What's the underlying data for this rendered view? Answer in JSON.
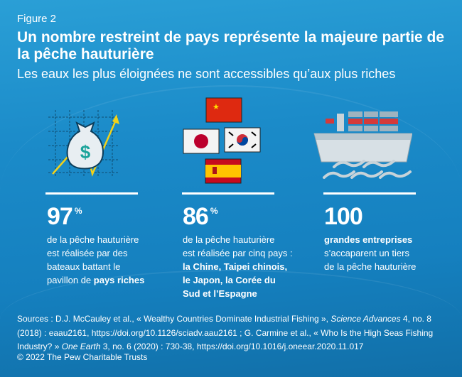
{
  "figure_label": "Figure 2",
  "title": "Un nombre restreint de pays représente la majeure partie de la pêche hauturière",
  "subtitle": "Les eaux les plus éloignées ne sont accessibles qu’aux plus riches",
  "colors": {
    "background": "#1b8bc9",
    "arrow": "#f2d21b",
    "text": "#ffffff"
  },
  "stats": [
    {
      "icon": "money-bag-chart-icon",
      "value": "97",
      "unit": "%",
      "text": [
        "de la pêche hauturière",
        "est réalisée par des",
        "bateaux battant le",
        "pavillon de "
      ],
      "bold": "pays riches"
    },
    {
      "icon": "flags-icon",
      "flags": [
        "China",
        "Japan",
        "South Korea",
        "Spain"
      ],
      "value": "86",
      "unit": "%",
      "text": [
        "de la pêche hauturière",
        "est réalisée par cinq pays :"
      ],
      "bold_lines": [
        "la Chine, Taipei chinois,",
        "le Japon, la Corée du",
        "Sud et l’Espagne"
      ]
    },
    {
      "icon": "cargo-ship-icon",
      "value": "100",
      "unit": "",
      "bold": "grandes entreprises",
      "text": [
        "s’accaparent un tiers",
        "de la pêche hauturière"
      ]
    }
  ],
  "sources": {
    "s1": "Sources : D.J. McCauley et al., « Wealthy Countries Dominate Industrial Fishing », ",
    "s1_journal": "Science Advances",
    "s1_rest": " 4, no. 8 (2018) : eaau2161, https://doi.org/10.1126/sciadv.aau2161 ; G. Carmine et al., « Who Is the High Seas Fishing Industry? » ",
    "s2_journal": "One Earth",
    "s2_rest": " 3, no. 6 (2020) : 730-38, https://doi.org/10.1016/j.oneear.2020.11.017"
  },
  "copyright": "© 2022 The Pew Charitable Trusts"
}
